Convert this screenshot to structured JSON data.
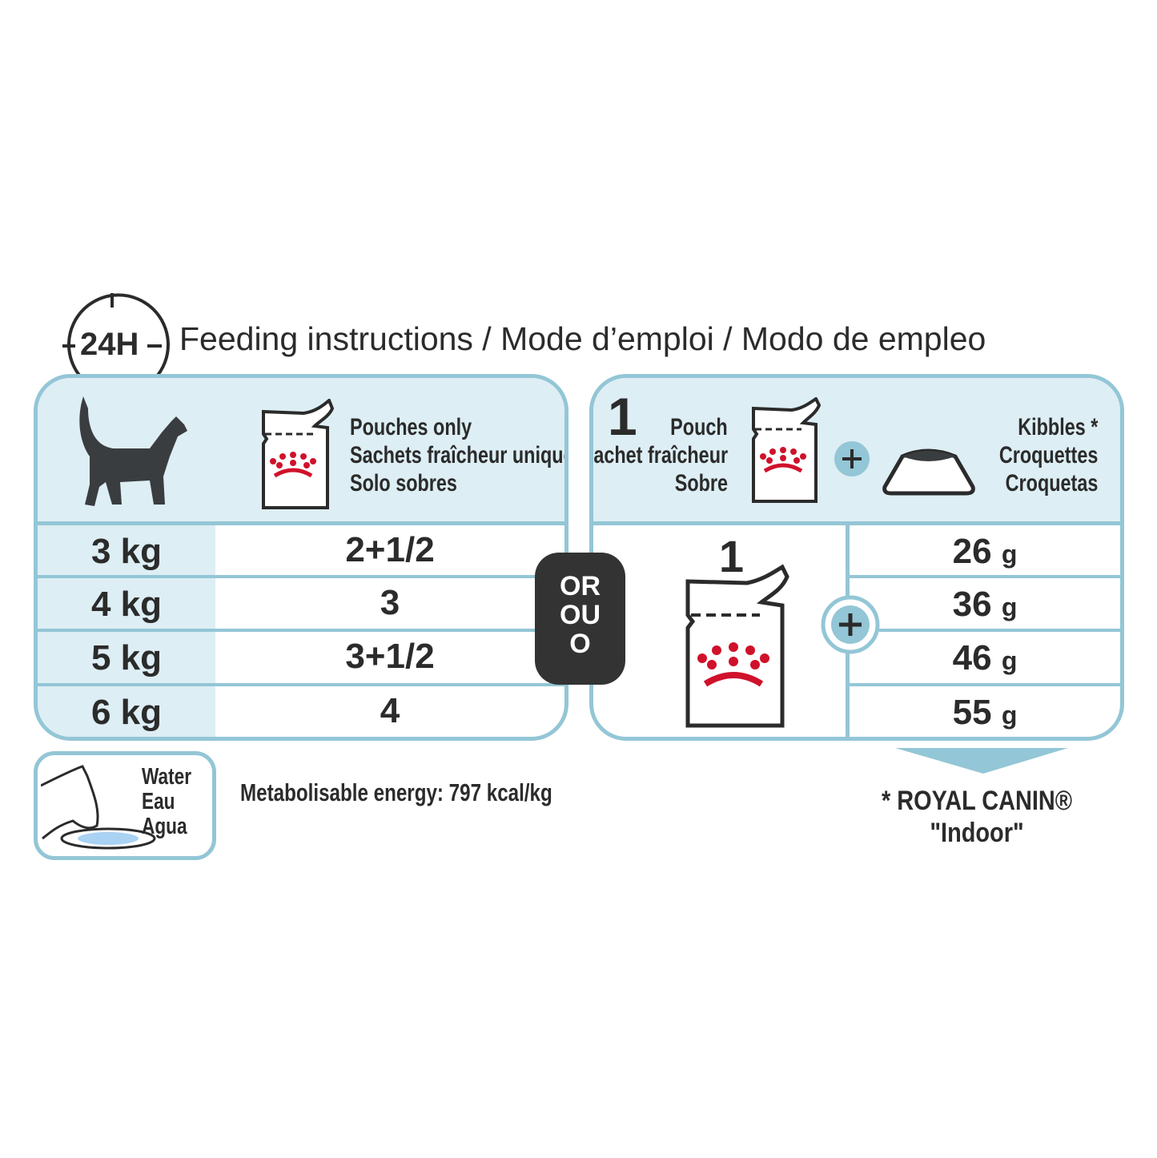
{
  "header": {
    "clock_label": "24H",
    "title": "Feeding instructions / Mode d’emploi / Modo de empleo"
  },
  "pouches_only": {
    "labels": [
      "Pouches only",
      "Sachets fraîcheur uniquement",
      "Solo sobres"
    ],
    "rows": [
      {
        "weight": "3 kg",
        "pouches": "2+1/2"
      },
      {
        "weight": "4 kg",
        "pouches": "3"
      },
      {
        "weight": "5 kg",
        "pouches": "3+1/2"
      },
      {
        "weight": "6 kg",
        "pouches": "4"
      }
    ]
  },
  "or_badge": [
    "OR",
    "OU",
    "O"
  ],
  "mixed": {
    "pouch_count": "1",
    "pouch_labels": [
      "Pouch",
      "Sachet fraîcheur",
      "Sobre"
    ],
    "kibble_labels": [
      "Kibbles *",
      "Croquettes",
      "Croquetas"
    ],
    "pouch_quantity": "1",
    "kibble_rows": [
      {
        "value": "26",
        "unit": "g"
      },
      {
        "value": "36",
        "unit": "g"
      },
      {
        "value": "46",
        "unit": "g"
      },
      {
        "value": "55",
        "unit": "g"
      }
    ]
  },
  "water": {
    "labels": [
      "Water",
      "Eau",
      "Agua"
    ]
  },
  "energy": "Metabolisable energy: 797 kcal/kg",
  "footnote": {
    "line1": "* ROYAL CANIN®",
    "line2": "\"Indoor\""
  },
  "colors": {
    "border": "#93c6d6",
    "light_fill": "#ddeef4",
    "text": "#2b2b2b",
    "brand_red": "#d0112b",
    "badge": "#333333"
  }
}
